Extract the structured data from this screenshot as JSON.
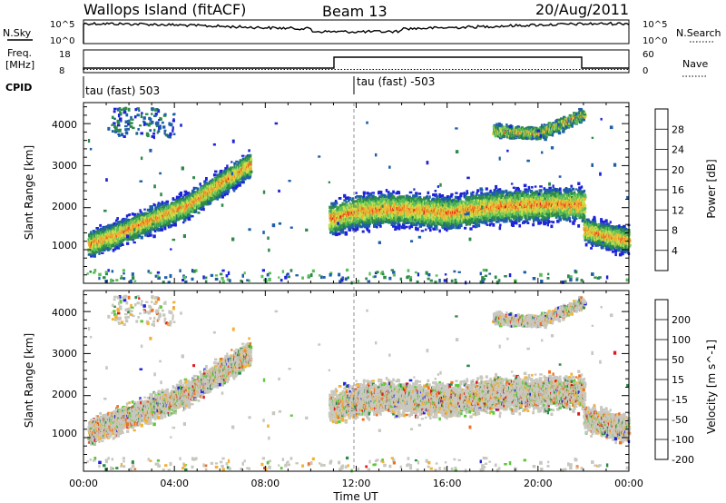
{
  "header": {
    "title": "Wallops Island (fitACF)",
    "beam": "Beam 13",
    "date": "20/Aug/2011"
  },
  "top_panels": {
    "nsky_label": "N.Sky",
    "nsearch_label": "N.Search",
    "freq_label": "Freq.",
    "freq_unit": "[MHz]",
    "cpid_label": "CPID",
    "nave_label": "Nave",
    "noise_ticks": [
      "10^5",
      "10^0"
    ],
    "freq_ticks": [
      "18",
      "8"
    ],
    "nave_ticks": [
      "60",
      "0"
    ],
    "cpid_left": "tau (fast) 503",
    "cpid_right": "tau (fast) -503"
  },
  "chart_data": [
    {
      "type": "heatmap",
      "panel": "power",
      "ylabel": "Slant Range [km]",
      "xlabel": "",
      "ylim": [
        200,
        4500
      ],
      "yticks": [
        "1000",
        "2000",
        "3000",
        "4000"
      ],
      "colorbar_label": "Power [dB]",
      "colorbar_ticks": [
        "4",
        "8",
        "12",
        "16",
        "20",
        "24",
        "28"
      ],
      "colors": [
        "#1e22d8",
        "#1f5fa8",
        "#2e8a4a",
        "#5bbf5a",
        "#c8e04a",
        "#f2b233",
        "#f07020",
        "#e01818"
      ],
      "echo_bands": [
        {
          "t": [
            0.2,
            1.5,
            3.0,
            4.5,
            6.0,
            7.3
          ],
          "r": [
            1150,
            1400,
            1750,
            2050,
            2600,
            3050
          ]
        },
        {
          "t": [
            10.8,
            12.0,
            14.0,
            16.0,
            18.0,
            20.0,
            22.0
          ],
          "r": [
            1750,
            1950,
            2000,
            1900,
            2050,
            2100,
            2100
          ]
        },
        {
          "t": [
            22.0,
            23.0,
            24.0
          ],
          "r": [
            1500,
            1350,
            1250
          ]
        },
        {
          "t": [
            18.0,
            20.0,
            22.0
          ],
          "r": [
            3850,
            3800,
            4250
          ]
        }
      ]
    },
    {
      "type": "heatmap",
      "panel": "velocity",
      "ylabel": "Slant Range [km]",
      "xlabel": "Time UT",
      "ylim": [
        200,
        4500
      ],
      "yticks": [
        "1000",
        "2000",
        "3000",
        "4000"
      ],
      "colorbar_label": "Velocity [m s^-1]",
      "colorbar_ticks": [
        "200",
        "100",
        "50",
        "15",
        "-15",
        "-50",
        "-100",
        "-200"
      ],
      "colors": [
        "#1e22d8",
        "#1e58a8",
        "#2e8a4a",
        "#5ec83c",
        "#c8c8c0",
        "#f2b233",
        "#f07020",
        "#e01818"
      ]
    }
  ],
  "x_axis": {
    "ticks": [
      "00:00",
      "04:00",
      "08:00",
      "12:00",
      "16:00",
      "20:00",
      "00:00"
    ],
    "label": "Time UT"
  }
}
